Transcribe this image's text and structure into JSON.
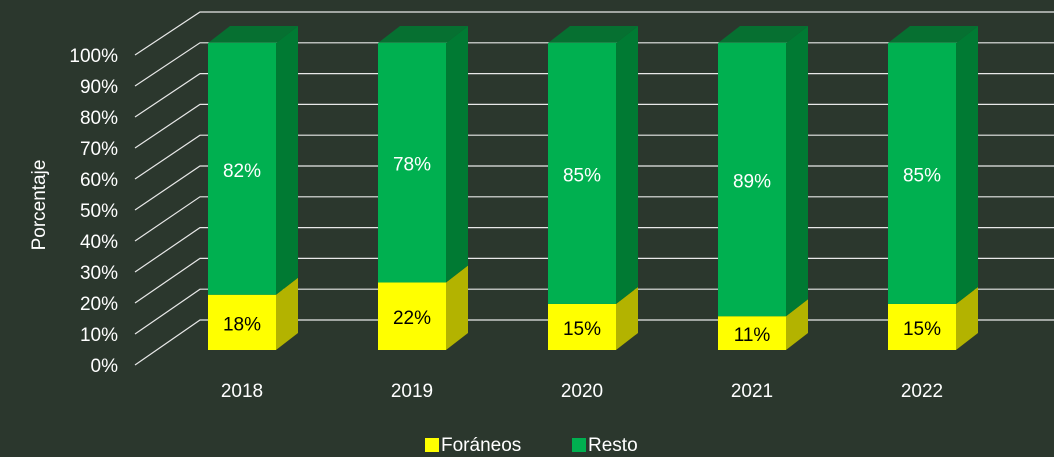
{
  "chart_data": {
    "type": "bar3d_stacked",
    "y_label": "Porcentaje",
    "categories": [
      "2018",
      "2019",
      "2020",
      "2021",
      "2022"
    ],
    "series": [
      {
        "name": "Foráneos",
        "color": "#ffff00",
        "side_color": "#b3b300",
        "text_color": "#000000",
        "values": [
          18,
          22,
          15,
          11,
          15
        ],
        "value_labels": [
          "18%",
          "22%",
          "15%",
          "11%",
          "15%"
        ]
      },
      {
        "name": "Resto",
        "color": "#00b050",
        "side_color": "#007a33",
        "text_color": "#ffffff",
        "values": [
          82,
          78,
          85,
          89,
          85
        ],
        "value_labels": [
          "82%",
          "78%",
          "85%",
          "89%",
          "85%"
        ]
      }
    ],
    "ylim": [
      0,
      100
    ],
    "yticks": [
      {
        "value": 0,
        "label": "0%"
      },
      {
        "value": 10,
        "label": "10%"
      },
      {
        "value": 20,
        "label": "20%"
      },
      {
        "value": 30,
        "label": "30%"
      },
      {
        "value": 40,
        "label": "40%"
      },
      {
        "value": 50,
        "label": "50%"
      },
      {
        "value": 60,
        "label": "60%"
      },
      {
        "value": 70,
        "label": "70%"
      },
      {
        "value": 80,
        "label": "80%"
      },
      {
        "value": 90,
        "label": "90%"
      },
      {
        "value": 100,
        "label": "100%"
      }
    ],
    "grid": true,
    "legend": "bottom"
  }
}
